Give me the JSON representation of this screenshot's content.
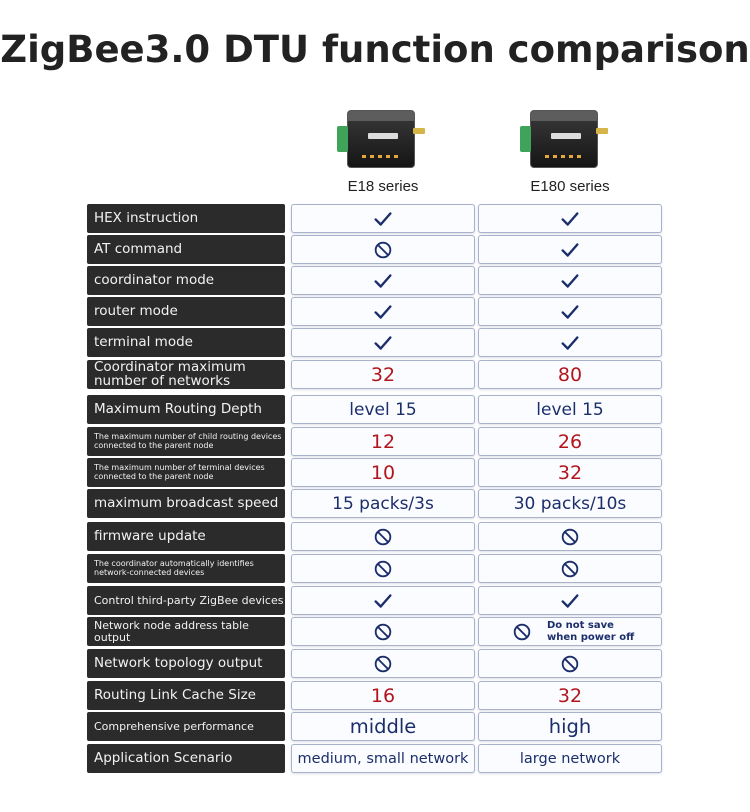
{
  "title": "ZigBee3.0 DTU function comparison",
  "products": [
    {
      "series": "E18 series",
      "device_text": "E18-DTU"
    },
    {
      "series": "E180 series",
      "device_text": "E180-DTU"
    }
  ],
  "colors": {
    "check": "#1b2e6b",
    "red_value": "#b2161c",
    "blue_value": "#1b2e6b",
    "label_bg": "#2b2b2b"
  },
  "rows": [
    {
      "label": "HEX instruction",
      "e18": "check-icon",
      "e180": "check-icon"
    },
    {
      "label": "AT command",
      "e18": "prohibited-icon",
      "e180": "check-icon"
    },
    {
      "label": "coordinator mode",
      "e18": "check-icon",
      "e180": "check-icon"
    },
    {
      "label": "router mode",
      "e18": "check-icon",
      "e180": "check-icon"
    },
    {
      "label": "terminal mode",
      "e18": "check-icon",
      "e180": "check-icon"
    },
    {
      "label": "Coordinator maximum number of networks",
      "e18": "32",
      "e180": "80"
    },
    {
      "label": "Maximum Routing Depth",
      "e18": "level 15",
      "e180": "level 15"
    },
    {
      "label": "The maximum number of child routing devices connected to the parent node",
      "e18": "12",
      "e180": "26"
    },
    {
      "label": "The maximum number of terminal devices connected to the parent node",
      "e18": "10",
      "e180": "32"
    },
    {
      "label": "maximum broadcast speed",
      "e18": "15 packs/3s",
      "e180": "30 packs/10s"
    },
    {
      "label": "firmware update",
      "e18": "prohibited-icon",
      "e180": "prohibited-icon"
    },
    {
      "label": "The coordinator automatically identifies network-connected devices",
      "e18": "prohibited-icon",
      "e180": "prohibited-icon"
    },
    {
      "label": "Control third-party ZigBee devices",
      "e18": "check-icon",
      "e180": "check-icon"
    },
    {
      "label": "Network node address table output",
      "e18": "prohibited-icon",
      "e180": "prohibited-icon",
      "e180_note": "Do not save when power off"
    },
    {
      "label": "Network topology output",
      "e18": "prohibited-icon",
      "e180": "prohibited-icon"
    },
    {
      "label": "Routing Link Cache Size",
      "e18": "16",
      "e180": "32"
    },
    {
      "label": "Comprehensive performance",
      "e18": "middle",
      "e180": "high"
    },
    {
      "label": "Application Scenario",
      "e18": "medium, small network",
      "e180": "large network"
    }
  ]
}
